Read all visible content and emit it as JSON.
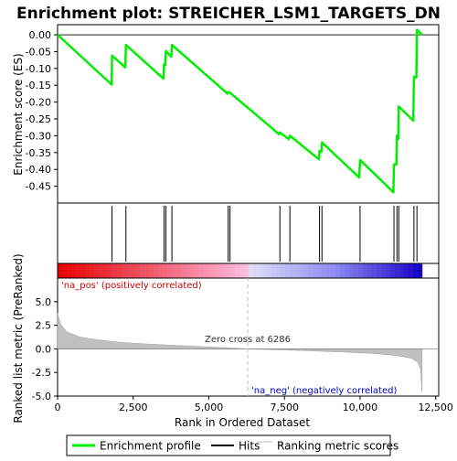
{
  "chart_data": {
    "type": "line",
    "title": "Enrichment plot: STREICHER_LSM1_TARGETS_DN",
    "top_panel": {
      "ylabel": "Enrichment score (ES)",
      "ylim": [
        -0.5,
        0.03
      ],
      "yticks": [
        0.0,
        -0.05,
        -0.1,
        -0.15,
        -0.2,
        -0.25,
        -0.3,
        -0.35,
        -0.4,
        -0.45
      ],
      "ytick_labels": [
        "0.00",
        "-0.05",
        "-0.10",
        "-0.15",
        "-0.20",
        "-0.25",
        "-0.30",
        "-0.35",
        "-0.40",
        "-0.45"
      ],
      "series": [
        {
          "name": "Enrichment profile",
          "color": "#00ee00",
          "x": [
            0,
            1790,
            1800,
            2240,
            2260,
            3500,
            3520,
            3560,
            3580,
            3760,
            3780,
            5620,
            5640,
            5700,
            7330,
            7350,
            7640,
            7680,
            8640,
            8660,
            8720,
            8740,
            9970,
            10000,
            11100,
            11120,
            11200,
            11220,
            11260,
            11280,
            11760,
            11780,
            11860,
            11880,
            12050
          ],
          "y": [
            0.0,
            -0.148,
            -0.062,
            -0.097,
            -0.03,
            -0.13,
            -0.088,
            -0.09,
            -0.048,
            -0.065,
            -0.03,
            -0.175,
            -0.17,
            -0.172,
            -0.296,
            -0.29,
            -0.31,
            -0.3,
            -0.37,
            -0.345,
            -0.348,
            -0.32,
            -0.424,
            -0.372,
            -0.468,
            -0.385,
            -0.385,
            -0.3,
            -0.31,
            -0.213,
            -0.255,
            -0.125,
            -0.127,
            0.015,
            0.0
          ]
        }
      ]
    },
    "hits_panel": {
      "hit_positions": [
        1800,
        2260,
        3520,
        3580,
        3780,
        5640,
        5700,
        7350,
        7680,
        8660,
        8740,
        10000,
        11120,
        11220,
        11280,
        11780,
        11880
      ]
    },
    "bottom_panel": {
      "ylabel": "Ranked list metric (PreRanked)",
      "xlabel": "Rank in Ordered Dataset",
      "ylim": [
        -5.0,
        7.5
      ],
      "yticks": [
        5.0,
        2.5,
        0.0,
        -2.5,
        -5.0
      ],
      "ytick_labels": [
        "5.0",
        "2.5",
        "0.0",
        "-2.5",
        "-5.0"
      ],
      "xlim": [
        0,
        12600
      ],
      "xticks": [
        0,
        2500,
        5000,
        7500,
        10000,
        12500
      ],
      "xtick_labels": [
        "0",
        "2,500",
        "5,000",
        "7,500",
        "10,000",
        "12,500"
      ],
      "metric_curve": {
        "x": [
          0,
          100,
          300,
          700,
          1200,
          2000,
          3000,
          4000,
          5000,
          6286,
          7500,
          8500,
          9500,
          10500,
          11000,
          11400,
          11700,
          11900,
          12000,
          12050
        ],
        "y": [
          3.8,
          2.6,
          1.8,
          1.3,
          1.0,
          0.72,
          0.5,
          0.35,
          0.2,
          0.0,
          -0.12,
          -0.22,
          -0.34,
          -0.5,
          -0.63,
          -0.8,
          -1.0,
          -1.4,
          -2.1,
          -4.6
        ]
      },
      "zero_cross_rank": 6286,
      "annotations": {
        "zero_cross": "Zero cross at 6286",
        "na_pos": "'na_pos' (positively correlated)",
        "na_neg": "'na_neg' (negatively correlated)"
      }
    },
    "legend": {
      "placement": "bottom",
      "entries": [
        {
          "label": "Enrichment profile",
          "color": "#00ee00"
        },
        {
          "label": "Hits",
          "color": "#000000"
        },
        {
          "label": "Ranking metric scores",
          "color": "#c0c0c0"
        }
      ]
    },
    "colors": {
      "profile": "#00ee00",
      "metric_fill": "#c0c0c0",
      "zero_line": "#c0c0c0",
      "na_pos_text": "#cc0000",
      "na_neg_text": "#0000cc"
    },
    "n_genes": 12050
  }
}
